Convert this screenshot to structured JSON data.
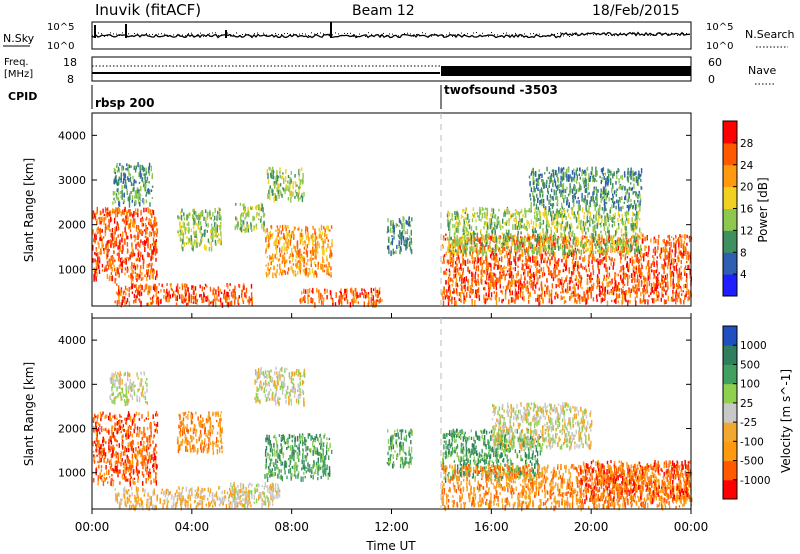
{
  "header": {
    "radar_title": "Inuvik (fitACF)",
    "beam": "Beam 12",
    "date": "18/Feb/2015"
  },
  "strips": {
    "nsky_label": "N.Sky",
    "nsky_ticks": [
      "10^5",
      "10^0"
    ],
    "nsearch_label": "N.Search",
    "nsearch_ticks": [
      "10^5",
      "10^0"
    ],
    "freq_label": "Freq.",
    "freq_unit": "[MHz]",
    "freq_ticks": [
      "18",
      "8"
    ],
    "nave_label": "Nave",
    "nave_ticks": [
      "60",
      "0"
    ],
    "cpid_label": "CPID",
    "cpid_segments": [
      {
        "name": "rbsp 200",
        "start_hour": 0
      },
      {
        "name": "twofsound -3503",
        "start_hour": 14
      }
    ]
  },
  "x_axis": {
    "label": "Time UT",
    "ticks": [
      "00:00",
      "04:00",
      "08:00",
      "12:00",
      "16:00",
      "20:00",
      "00:00"
    ],
    "range_hours": [
      0,
      24
    ]
  },
  "chart_data": [
    {
      "type": "heatmap",
      "ylabel": "Slant Range [km]",
      "y_ticks": [
        "1000",
        "2000",
        "3000",
        "4000"
      ],
      "ylim": [
        180,
        4500
      ],
      "colorbar_label": "Power [dB]",
      "colorbar_ticks": [
        "4",
        "8",
        "12",
        "16",
        "20",
        "24",
        "28"
      ],
      "colorbar_range": [
        0,
        32
      ],
      "colors": [
        "#1f1fff",
        "#2f5fb0",
        "#3f8f5f",
        "#8fc84f",
        "#f0d020",
        "#ff9a10",
        "#ff5a00",
        "#ff0000"
      ],
      "echo_regions": [
        {
          "t0": 0.0,
          "t1": 2.6,
          "r0": 800,
          "r1": 2400,
          "value": 26
        },
        {
          "t0": 0.8,
          "t1": 2.4,
          "r0": 2500,
          "r1": 3400,
          "value": 10
        },
        {
          "t0": 0.9,
          "t1": 6.4,
          "r0": 250,
          "r1": 700,
          "value": 27
        },
        {
          "t0": 3.4,
          "t1": 5.2,
          "r0": 1500,
          "r1": 2400,
          "value": 14
        },
        {
          "t0": 5.7,
          "t1": 6.9,
          "r0": 1900,
          "r1": 2500,
          "value": 14
        },
        {
          "t0": 6.9,
          "t1": 9.6,
          "r0": 900,
          "r1": 2000,
          "value": 24
        },
        {
          "t0": 7.0,
          "t1": 8.5,
          "r0": 2600,
          "r1": 3300,
          "value": 12
        },
        {
          "t0": 8.3,
          "t1": 11.6,
          "r0": 250,
          "r1": 600,
          "value": 26
        },
        {
          "t0": 11.8,
          "t1": 12.8,
          "r0": 1400,
          "r1": 2200,
          "value": 10
        },
        {
          "t0": 14.0,
          "t1": 24.0,
          "r0": 300,
          "r1": 1800,
          "value": 26
        },
        {
          "t0": 14.2,
          "t1": 22.0,
          "r0": 1400,
          "r1": 2400,
          "value": 12
        },
        {
          "t0": 17.5,
          "t1": 22.0,
          "r0": 2400,
          "r1": 3300,
          "value": 7
        }
      ]
    },
    {
      "type": "heatmap",
      "ylabel": "Slant Range [km]",
      "y_ticks": [
        "1000",
        "2000",
        "3000",
        "4000"
      ],
      "ylim": [
        180,
        4500
      ],
      "colorbar_label": "Velocity [m s^-1]",
      "colorbar_ticks": [
        "1000",
        "500",
        "100",
        "25",
        "-25",
        "-100",
        "-500",
        "-1000"
      ],
      "colors": [
        "#ff0000",
        "#ff5a00",
        "#ff9a10",
        "#f0a830",
        "#c8c8c8",
        "#8fd04f",
        "#3fa05f",
        "#2f7f5f",
        "#2050c0"
      ],
      "echo_regions": [
        {
          "t0": 0.0,
          "t1": 2.6,
          "r0": 800,
          "r1": 2400,
          "value": 1
        },
        {
          "t0": 0.7,
          "t1": 2.2,
          "r0": 2600,
          "r1": 3300,
          "value": 4
        },
        {
          "t0": 0.9,
          "t1": 6.4,
          "r0": 250,
          "r1": 700,
          "value": 3
        },
        {
          "t0": 3.4,
          "t1": 5.2,
          "r0": 1500,
          "r1": 2400,
          "value": 2
        },
        {
          "t0": 5.5,
          "t1": 7.5,
          "r0": 300,
          "r1": 800,
          "value": 4
        },
        {
          "t0": 6.9,
          "t1": 9.6,
          "r0": 900,
          "r1": 1900,
          "value": 6
        },
        {
          "t0": 6.5,
          "t1": 8.5,
          "r0": 2600,
          "r1": 3400,
          "value": 4
        },
        {
          "t0": 11.8,
          "t1": 12.8,
          "r0": 1200,
          "r1": 2000,
          "value": 6
        },
        {
          "t0": 14.0,
          "t1": 18.0,
          "r0": 900,
          "r1": 2000,
          "value": 6
        },
        {
          "t0": 14.0,
          "t1": 24.0,
          "r0": 250,
          "r1": 1200,
          "value": 2
        },
        {
          "t0": 16.0,
          "t1": 20.0,
          "r0": 1600,
          "r1": 2600,
          "value": 4
        },
        {
          "t0": 19.5,
          "t1": 24.0,
          "r0": 400,
          "r1": 1300,
          "value": 1
        }
      ]
    }
  ]
}
